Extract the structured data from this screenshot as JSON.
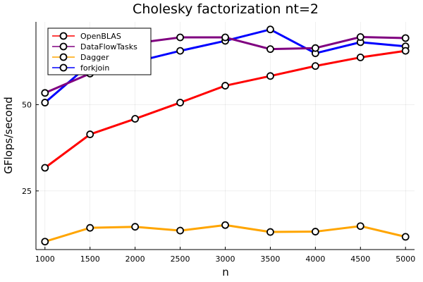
{
  "chart_data": {
    "type": "line",
    "title": "Cholesky factorization nt=2",
    "xlabel": "n",
    "ylabel": "GFlops/second",
    "x": [
      1000,
      1500,
      2000,
      2500,
      3000,
      3500,
      4000,
      4500,
      5000
    ],
    "xlim": [
      900,
      5100
    ],
    "ylim": [
      8,
      74
    ],
    "xticks": [
      1000,
      1500,
      2000,
      2500,
      3000,
      3500,
      4000,
      4500,
      5000
    ],
    "yticks": [
      25,
      50
    ],
    "grid": true,
    "legend_position": "top-left",
    "series": [
      {
        "name": "OpenBLAS",
        "color": "#ff0000",
        "values": [
          31.7,
          41.4,
          45.9,
          50.6,
          55.5,
          58.3,
          61.2,
          63.7,
          65.6
        ]
      },
      {
        "name": "DataFlowTasks",
        "color": "#800080",
        "values": [
          53.4,
          59.0,
          67.8,
          69.5,
          69.5,
          66.1,
          66.4,
          69.6,
          69.3
        ]
      },
      {
        "name": "Dagger",
        "color": "#ffa500",
        "values": [
          10.3,
          14.3,
          14.6,
          13.5,
          15.1,
          13.1,
          13.2,
          14.8,
          11.7
        ]
      },
      {
        "name": "forkjoin",
        "color": "#0000ff",
        "values": [
          50.6,
          61.8,
          62.4,
          65.6,
          68.5,
          71.8,
          64.9,
          68.1,
          66.9
        ]
      }
    ],
    "draw_order": [
      "forkjoin",
      "DataFlowTasks",
      "OpenBLAS",
      "Dagger"
    ]
  }
}
